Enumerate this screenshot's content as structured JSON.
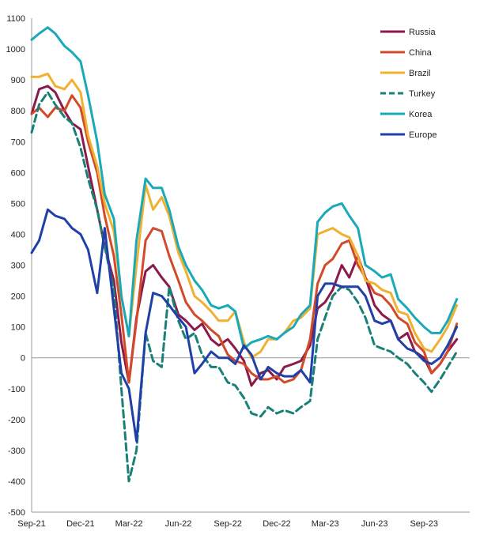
{
  "chart_data": {
    "type": "line",
    "x": [
      "2021-09-01",
      "2021-09-15",
      "2021-10-01",
      "2021-10-15",
      "2021-11-01",
      "2021-11-15",
      "2021-12-01",
      "2021-12-15",
      "2022-01-01",
      "2022-01-15",
      "2022-02-01",
      "2022-02-15",
      "2022-03-01",
      "2022-03-15",
      "2022-04-01",
      "2022-04-15",
      "2022-05-01",
      "2022-05-15",
      "2022-06-01",
      "2022-06-15",
      "2022-07-01",
      "2022-07-15",
      "2022-08-01",
      "2022-08-15",
      "2022-09-01",
      "2022-09-15",
      "2022-10-01",
      "2022-10-15",
      "2022-11-01",
      "2022-11-15",
      "2022-12-01",
      "2022-12-15",
      "2023-01-01",
      "2023-01-15",
      "2023-02-01",
      "2023-02-15",
      "2023-03-01",
      "2023-03-15",
      "2023-04-01",
      "2023-04-15",
      "2023-05-01",
      "2023-05-15",
      "2023-06-01",
      "2023-06-15",
      "2023-07-01",
      "2023-07-15",
      "2023-08-01",
      "2023-08-15",
      "2023-09-01",
      "2023-09-15",
      "2023-10-01",
      "2023-10-15",
      "2023-11-01"
    ],
    "x_ticks": [
      "Sep-21",
      "Dec-21",
      "Mar-22",
      "Jun-22",
      "Sep-22",
      "Dec-22",
      "Mar-23",
      "Jun-23",
      "Sep-23"
    ],
    "ylim": [
      -500,
      1100
    ],
    "y_ticks": [
      1100,
      1000,
      900,
      800,
      700,
      600,
      500,
      400,
      300,
      200,
      100,
      0,
      -100,
      -200,
      -300,
      -400,
      -500
    ],
    "legend_position": "top-right",
    "grid": false,
    "series": [
      {
        "name": "Russia",
        "color": "#8B1A4A",
        "dash": false,
        "values": [
          790,
          870,
          880,
          860,
          800,
          760,
          740,
          620,
          480,
          360,
          250,
          50,
          -80,
          130,
          280,
          300,
          260,
          230,
          140,
          120,
          90,
          110,
          60,
          40,
          60,
          30,
          -10,
          -90,
          -50,
          -40,
          -70,
          -30,
          -20,
          -10,
          40,
          160,
          180,
          220,
          300,
          260,
          330,
          260,
          170,
          140,
          120,
          60,
          80,
          20,
          0,
          -50,
          -20,
          20,
          60
        ]
      },
      {
        "name": "China",
        "color": "#D24A2A",
        "dash": false,
        "values": [
          790,
          810,
          780,
          810,
          800,
          850,
          810,
          700,
          600,
          460,
          330,
          140,
          -80,
          120,
          380,
          420,
          410,
          330,
          250,
          180,
          140,
          120,
          90,
          70,
          10,
          -10,
          -20,
          -50,
          -70,
          -70,
          -60,
          -80,
          -70,
          -40,
          60,
          240,
          300,
          320,
          370,
          380,
          300,
          260,
          210,
          200,
          170,
          130,
          110,
          50,
          20,
          -50,
          -20,
          20,
          110
        ]
      },
      {
        "name": "Brazil",
        "color": "#F0B030",
        "dash": false,
        "values": [
          910,
          910,
          920,
          880,
          870,
          900,
          860,
          720,
          620,
          500,
          410,
          200,
          70,
          300,
          560,
          480,
          520,
          460,
          340,
          280,
          200,
          180,
          150,
          120,
          120,
          150,
          50,
          0,
          20,
          60,
          60,
          80,
          120,
          130,
          160,
          400,
          410,
          420,
          400,
          390,
          330,
          250,
          240,
          220,
          210,
          150,
          140,
          80,
          30,
          20,
          60,
          100,
          170
        ]
      },
      {
        "name": "Turkey",
        "color": "#1A8077",
        "dash": true,
        "values": [
          730,
          820,
          860,
          820,
          780,
          760,
          680,
          580,
          480,
          360,
          220,
          -100,
          -400,
          -300,
          80,
          -10,
          -30,
          230,
          120,
          60,
          80,
          10,
          -30,
          -30,
          -80,
          -90,
          -130,
          -180,
          -190,
          -160,
          -180,
          -170,
          -180,
          -160,
          -140,
          60,
          130,
          200,
          230,
          220,
          180,
          130,
          40,
          30,
          20,
          0,
          -20,
          -50,
          -80,
          -110,
          -70,
          -30,
          20
        ]
      },
      {
        "name": "Korea",
        "color": "#1AA9B8",
        "dash": false,
        "values": [
          1030,
          1050,
          1070,
          1050,
          1010,
          990,
          960,
          850,
          700,
          530,
          450,
          200,
          70,
          380,
          580,
          550,
          550,
          480,
          360,
          300,
          250,
          220,
          170,
          160,
          170,
          150,
          30,
          50,
          60,
          70,
          60,
          80,
          100,
          140,
          170,
          440,
          470,
          490,
          500,
          460,
          420,
          300,
          280,
          260,
          270,
          190,
          160,
          130,
          100,
          80,
          80,
          120,
          190
        ]
      },
      {
        "name": "Europe",
        "color": "#2040A8",
        "dash": false,
        "values": [
          340,
          380,
          480,
          460,
          450,
          420,
          400,
          350,
          210,
          420,
          160,
          -50,
          -100,
          -270,
          80,
          210,
          200,
          170,
          130,
          100,
          -50,
          -20,
          20,
          0,
          0,
          -20,
          40,
          10,
          -70,
          -30,
          -50,
          -60,
          -60,
          -40,
          -80,
          200,
          240,
          240,
          230,
          230,
          230,
          200,
          120,
          110,
          120,
          60,
          30,
          20,
          -10,
          -20,
          0,
          40,
          100
        ]
      }
    ]
  }
}
